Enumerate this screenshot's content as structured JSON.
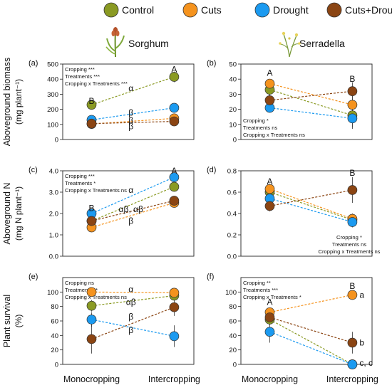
{
  "legend": [
    {
      "name": "Control",
      "color": "#8a9a23"
    },
    {
      "name": "Cuts",
      "color": "#f5931e"
    },
    {
      "name": "Drought",
      "color": "#1b9af0"
    },
    {
      "name": "Cuts+Drought",
      "color": "#8b4513"
    }
  ],
  "crops": {
    "sorghum": {
      "title": "Sorghum",
      "icon": "sorghum-plant-icon"
    },
    "serradella": {
      "title": "Serradella",
      "icon": "serradella-plant-icon"
    }
  },
  "row_labels": [
    {
      "line1": "Aboveground biomass",
      "line2": "(mg plant⁻¹)"
    },
    {
      "line1": "Aboveground N",
      "line2": "(mg N plant⁻¹)"
    },
    {
      "line1": "Plant survival",
      "line2": "(%)"
    }
  ],
  "x_categories": [
    "Monocropping",
    "Intercropping"
  ],
  "chart_data": [
    {
      "type": "scatter",
      "panel": "(a)",
      "ylim": [
        0,
        500
      ],
      "yticks": [
        0,
        100,
        200,
        300,
        400,
        500
      ],
      "stats": [
        "Cropping ***",
        "Treatments ***",
        "Cropping x Treatments ***"
      ],
      "stats_pos": "top-left",
      "categories": [
        "Monocropping",
        "Intercropping"
      ],
      "series": [
        {
          "name": "Control",
          "values": [
            230,
            415
          ],
          "err": [
            8,
            35
          ]
        },
        {
          "name": "Cuts",
          "values": [
            103,
            140
          ],
          "err": [
            6,
            10
          ]
        },
        {
          "name": "Drought",
          "values": [
            130,
            210
          ],
          "err": [
            10,
            10
          ]
        },
        {
          "name": "Cuts+Drought",
          "values": [
            105,
            120
          ],
          "err": [
            6,
            10
          ]
        }
      ],
      "letters": [
        {
          "text": "B",
          "x": 0,
          "y": 255
        },
        {
          "text": "A",
          "x": 1,
          "y": 465
        }
      ],
      "greek": [
        {
          "text": "α",
          "y": 340
        },
        {
          "text": "β",
          "y": 178
        },
        {
          "text": "β",
          "y": 125
        },
        {
          "text": "β",
          "y": 88
        }
      ]
    },
    {
      "type": "scatter",
      "panel": "(b)",
      "ylim": [
        0,
        50
      ],
      "yticks": [
        0,
        10,
        20,
        30,
        40,
        50
      ],
      "stats": [
        "Cropping *",
        "Treatments ns",
        "Cropping x Treatments ns"
      ],
      "stats_pos": "bottom-left",
      "categories": [
        "Monocropping",
        "Intercropping"
      ],
      "series": [
        {
          "name": "Control",
          "values": [
            33,
            16
          ],
          "err": [
            5,
            8
          ]
        },
        {
          "name": "Cuts",
          "values": [
            37,
            23
          ],
          "err": [
            3,
            6
          ]
        },
        {
          "name": "Drought",
          "values": [
            21,
            14
          ],
          "err": [
            2,
            7
          ]
        },
        {
          "name": "Cuts+Drought",
          "values": [
            26,
            32
          ],
          "err": [
            5,
            6
          ]
        }
      ],
      "letters": [
        {
          "text": "A",
          "x": 0,
          "y": 44
        },
        {
          "text": "B",
          "x": 1,
          "y": 40
        }
      ],
      "greek": []
    },
    {
      "type": "scatter",
      "panel": "(c)",
      "ylim": [
        0,
        4.0
      ],
      "yticks": [
        0,
        1.0,
        2.0,
        3.0,
        4.0
      ],
      "stats": [
        "Cropping ***",
        "Treatments *",
        "Cropping x Treatments ns"
      ],
      "stats_pos": "top-left",
      "categories": [
        "Monocropping",
        "Intercropping"
      ],
      "series": [
        {
          "name": "Control",
          "values": [
            1.65,
            3.25
          ],
          "err": [
            0.15,
            0.2
          ]
        },
        {
          "name": "Cuts",
          "values": [
            1.35,
            2.5
          ],
          "err": [
            0.15,
            0.2
          ]
        },
        {
          "name": "Drought",
          "values": [
            2.0,
            3.7
          ],
          "err": [
            0.15,
            0.15
          ]
        },
        {
          "name": "Cuts+Drought",
          "values": [
            1.65,
            2.6
          ],
          "err": [
            0.15,
            0.2
          ]
        }
      ],
      "letters": [
        {
          "text": "B",
          "x": 0,
          "y": 2.25
        },
        {
          "text": "A",
          "x": 1,
          "y": 4.0
        }
      ],
      "greek": [
        {
          "text": "α",
          "y": 3.1
        },
        {
          "text": "αβ, αβ",
          "y": 2.2
        },
        {
          "text": "β",
          "y": 1.65
        }
      ]
    },
    {
      "type": "scatter",
      "panel": "(d)",
      "ylim": [
        0,
        0.8
      ],
      "yticks": [
        0,
        0.2,
        0.4,
        0.6,
        0.8
      ],
      "stats": [
        "Cropping *",
        "Treatments ns",
        "Cropping x Treatments ns"
      ],
      "stats_pos": "bottom-right",
      "categories": [
        "Monocropping",
        "Intercropping"
      ],
      "series": [
        {
          "name": "Control",
          "values": [
            0.6,
            0.34
          ],
          "err": [
            0.05,
            0.05
          ]
        },
        {
          "name": "Cuts",
          "values": [
            0.63,
            0.35
          ],
          "err": [
            0.05,
            0.05
          ]
        },
        {
          "name": "Drought",
          "values": [
            0.54,
            0.32
          ],
          "err": [
            0.05,
            0.05
          ]
        },
        {
          "name": "Cuts+Drought",
          "values": [
            0.47,
            0.62
          ],
          "err": [
            0.05,
            0.12
          ]
        }
      ],
      "letters": [
        {
          "text": "A",
          "x": 0,
          "y": 0.7
        },
        {
          "text": "B",
          "x": 1,
          "y": 0.78
        }
      ],
      "greek": []
    },
    {
      "type": "scatter",
      "panel": "(e)",
      "ylim": [
        0,
        120
      ],
      "yticks": [
        0,
        20,
        40,
        60,
        80,
        100
      ],
      "stats": [
        "Cropping ns",
        "Treatments **",
        "Cropping x Treatments ns"
      ],
      "stats_pos": "top-left",
      "categories": [
        "Monocropping",
        "Intercropping"
      ],
      "series": [
        {
          "name": "Control",
          "values": [
            81,
            95
          ],
          "err": [
            8,
            4
          ]
        },
        {
          "name": "Cuts",
          "values": [
            100,
            99
          ],
          "err": [
            2,
            2
          ]
        },
        {
          "name": "Drought",
          "values": [
            62,
            39
          ],
          "err": [
            10,
            15
          ]
        },
        {
          "name": "Cuts+Drought",
          "values": [
            35,
            79
          ],
          "err": [
            20,
            12
          ]
        }
      ],
      "letters": [],
      "greek": [
        {
          "text": "α",
          "y": 104
        },
        {
          "text": "αβ",
          "y": 86
        },
        {
          "text": "β",
          "y": 66
        },
        {
          "text": "β",
          "y": 47
        }
      ]
    },
    {
      "type": "scatter",
      "panel": "(f)",
      "ylim": [
        0,
        120
      ],
      "yticks": [
        0,
        20,
        40,
        60,
        80,
        100
      ],
      "stats": [
        "Cropping **",
        "Treatments ***",
        "Cropping x Treatments *"
      ],
      "stats_pos": "top-left",
      "categories": [
        "Monocropping",
        "Intercropping"
      ],
      "series": [
        {
          "name": "Control",
          "values": [
            62,
            0
          ],
          "err": [
            8,
            0
          ]
        },
        {
          "name": "Cuts",
          "values": [
            72,
            96
          ],
          "err": [
            6,
            2
          ]
        },
        {
          "name": "Drought",
          "values": [
            45,
            0
          ],
          "err": [
            15,
            0
          ]
        },
        {
          "name": "Cuts+Drought",
          "values": [
            65,
            30
          ],
          "err": [
            10,
            15
          ]
        }
      ],
      "letters": [
        {
          "text": "A",
          "x": 0,
          "y": 86
        },
        {
          "text": "B",
          "x": 1,
          "y": 108
        }
      ],
      "greek": [],
      "side_labels": [
        {
          "text": "a",
          "y": 96
        },
        {
          "text": "b",
          "y": 30
        },
        {
          "text": "c, c",
          "y": 2
        }
      ]
    }
  ]
}
